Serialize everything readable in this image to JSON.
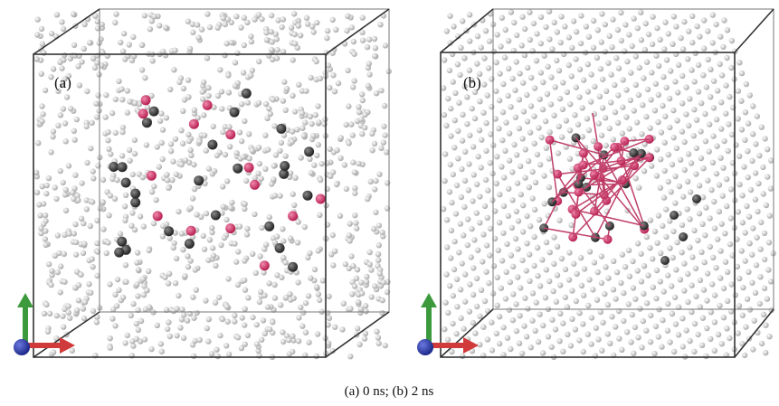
{
  "panels": [
    {
      "label": "(a)"
    },
    {
      "label": "(b)"
    }
  ],
  "caption": "(a) 0 ns; (b) 2 ns"
}
